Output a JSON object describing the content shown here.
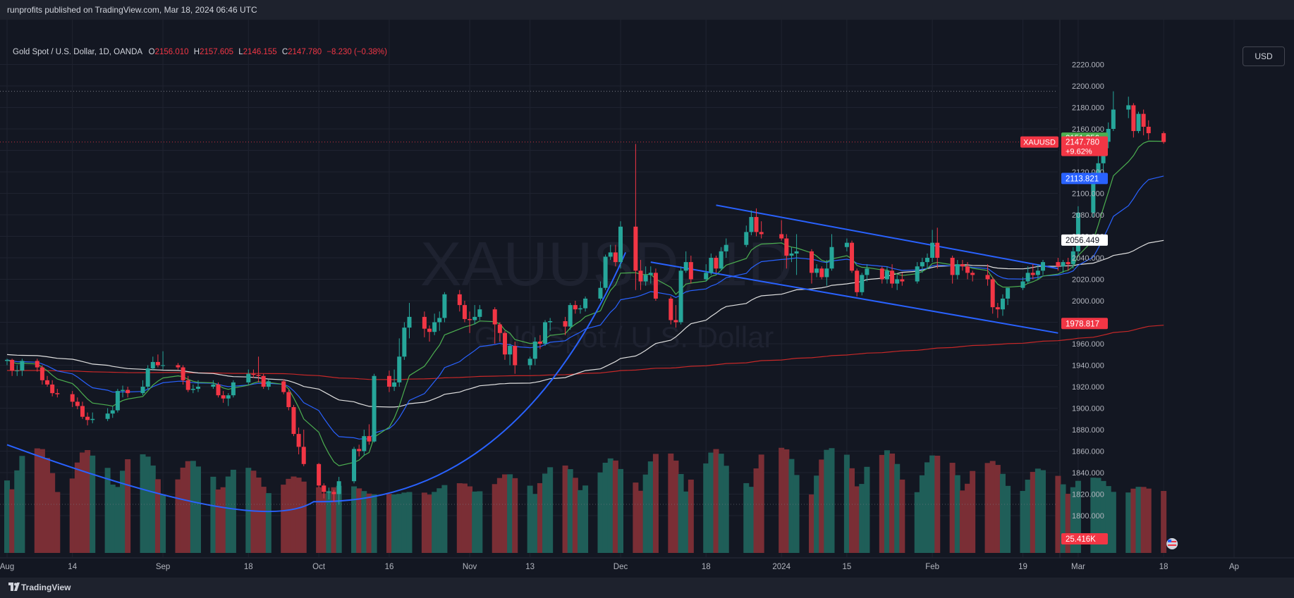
{
  "header": {
    "published": "runprofits published on TradingView.com, Mar 18, 2024 06:46 UTC"
  },
  "legend": {
    "title": "Gold Spot / U.S. Dollar, 1D, OANDA",
    "o_label": "O",
    "o_value": "2156.010",
    "h_label": "H",
    "h_value": "2157.605",
    "l_label": "L",
    "l_value": "2146.155",
    "c_label": "C",
    "c_value": "2147.780",
    "change": "−8.230 (−0.38%)"
  },
  "currency_button": "USD",
  "watermark": {
    "symbol": "XAUUSD, 1D",
    "name": "Gold Spot / U.S. Dollar"
  },
  "footer": {
    "brand": "TradingView"
  },
  "colors": {
    "up": "#26a69a",
    "down": "#f23645",
    "background": "#131722",
    "grid": "#1f2330",
    "text": "#d1d4dc"
  },
  "icons": {
    "logo": "tradingview-logo-icon",
    "flag": "us-flag-icon"
  },
  "chart_data": {
    "type": "candlestick",
    "symbol": "XAUUSD",
    "y_axis": {
      "ticks": [
        "2220.000",
        "2200.000",
        "2180.000",
        "2160.000",
        "2140.000",
        "2120.000",
        "2100.000",
        "2080.000",
        "2060.000",
        "2040.000",
        "2020.000",
        "2000.000",
        "1980.000",
        "1960.000",
        "1940.000",
        "1920.000",
        "1900.000",
        "1880.000",
        "1860.000",
        "1840.000",
        "1820.000",
        "1800.000"
      ],
      "range": [
        1787,
        2230
      ]
    },
    "x_axis": {
      "ticks": [
        {
          "label": "Aug",
          "date": "2023-08-01"
        },
        {
          "label": "14",
          "date": "2023-08-14"
        },
        {
          "label": "Sep",
          "date": "2023-09-01"
        },
        {
          "label": "18",
          "date": "2023-09-18"
        },
        {
          "label": "Oct",
          "date": "2023-10-02"
        },
        {
          "label": "16",
          "date": "2023-10-16"
        },
        {
          "label": "Nov",
          "date": "2023-11-01"
        },
        {
          "label": "13",
          "date": "2023-11-13"
        },
        {
          "label": "Dec",
          "date": "2023-12-01"
        },
        {
          "label": "18",
          "date": "2023-12-18"
        },
        {
          "label": "2024",
          "date": "2024-01-02"
        },
        {
          "label": "15",
          "date": "2024-01-15"
        },
        {
          "label": "Feb",
          "date": "2024-02-01"
        },
        {
          "label": "19",
          "date": "2024-02-19"
        },
        {
          "label": "Mar",
          "date": "2024-03-01"
        },
        {
          "label": "18",
          "date": "2024-03-18"
        },
        {
          "label": "Ap",
          "date": "2024-04-01"
        }
      ]
    },
    "price_labels": [
      {
        "text": "2151.356",
        "value": 2151.356,
        "color": "#4caf50"
      },
      {
        "text": "2147.780",
        "sub": "+9.62%",
        "value": 2147.78,
        "color": "#f23645",
        "tag": "XAUUSD"
      },
      {
        "text": "2113.821",
        "value": 2113.821,
        "color": "#2962ff"
      },
      {
        "text": "2056.449",
        "value": 2056.449,
        "color": "#ffffff"
      },
      {
        "text": "1978.817",
        "value": 1978.817,
        "color": "#f23645"
      },
      {
        "text": "25.416K",
        "value": null,
        "color": "#f23645"
      }
    ],
    "high_line": 2195,
    "candles": [
      [
        "2023-08-01",
        1944,
        1946,
        1940,
        1945
      ],
      [
        "2023-08-02",
        1945,
        1946,
        1930,
        1935
      ],
      [
        "2023-08-03",
        1935,
        1940,
        1930,
        1935
      ],
      [
        "2023-08-04",
        1935,
        1946,
        1930,
        1944
      ],
      [
        "2023-08-07",
        1944,
        1946,
        1934,
        1938
      ],
      [
        "2023-08-08",
        1938,
        1940,
        1922,
        1926
      ],
      [
        "2023-08-09",
        1926,
        1930,
        1920,
        1922
      ],
      [
        "2023-08-10",
        1922,
        1926,
        1911,
        1914
      ],
      [
        "2023-08-11",
        1914,
        1918,
        1910,
        1913
      ],
      [
        "2023-08-14",
        1913,
        1916,
        1901,
        1906
      ],
      [
        "2023-08-15",
        1906,
        1910,
        1899,
        1902
      ],
      [
        "2023-08-16",
        1902,
        1906,
        1890,
        1892
      ],
      [
        "2023-08-17",
        1892,
        1896,
        1884,
        1889
      ],
      [
        "2023-08-18",
        1889,
        1896,
        1886,
        1890
      ],
      [
        "2023-08-21",
        1890,
        1900,
        1888,
        1895
      ],
      [
        "2023-08-22",
        1895,
        1902,
        1891,
        1898
      ],
      [
        "2023-08-23",
        1898,
        1918,
        1896,
        1916
      ],
      [
        "2023-08-24",
        1916,
        1921,
        1910,
        1917
      ],
      [
        "2023-08-25",
        1917,
        1920,
        1910,
        1914
      ],
      [
        "2023-08-28",
        1914,
        1926,
        1912,
        1920
      ],
      [
        "2023-08-29",
        1920,
        1940,
        1918,
        1937
      ],
      [
        "2023-08-30",
        1937,
        1948,
        1935,
        1943
      ],
      [
        "2023-08-31",
        1943,
        1950,
        1938,
        1940
      ],
      [
        "2023-09-01",
        1940,
        1953,
        1936,
        1940
      ],
      [
        "2023-09-04",
        1940,
        1942,
        1936,
        1938
      ],
      [
        "2023-09-05",
        1938,
        1940,
        1922,
        1926
      ],
      [
        "2023-09-06",
        1926,
        1930,
        1915,
        1917
      ],
      [
        "2023-09-07",
        1917,
        1922,
        1914,
        1918
      ],
      [
        "2023-09-08",
        1918,
        1926,
        1915,
        1920
      ],
      [
        "2023-09-11",
        1920,
        1926,
        1918,
        1922
      ],
      [
        "2023-09-12",
        1922,
        1924,
        1910,
        1912
      ],
      [
        "2023-09-13",
        1912,
        1916,
        1905,
        1909
      ],
      [
        "2023-09-14",
        1909,
        1914,
        1902,
        1912
      ],
      [
        "2023-09-15",
        1912,
        1926,
        1910,
        1924
      ],
      [
        "2023-09-18",
        1924,
        1936,
        1922,
        1932
      ],
      [
        "2023-09-19",
        1932,
        1936,
        1928,
        1931
      ],
      [
        "2023-09-20",
        1931,
        1948,
        1924,
        1930
      ],
      [
        "2023-09-21",
        1930,
        1932,
        1918,
        1920
      ],
      [
        "2023-09-22",
        1920,
        1927,
        1917,
        1925
      ],
      [
        "2023-09-25",
        1925,
        1927,
        1913,
        1915
      ],
      [
        "2023-09-26",
        1915,
        1917,
        1898,
        1901
      ],
      [
        "2023-09-27",
        1901,
        1903,
        1874,
        1876
      ],
      [
        "2023-09-28",
        1876,
        1882,
        1857,
        1864
      ],
      [
        "2023-09-29",
        1864,
        1880,
        1846,
        1848
      ],
      [
        "2023-10-02",
        1848,
        1849,
        1826,
        1828
      ],
      [
        "2023-10-03",
        1828,
        1830,
        1816,
        1822
      ],
      [
        "2023-10-04",
        1822,
        1826,
        1815,
        1822
      ],
      [
        "2023-10-05",
        1822,
        1824,
        1813,
        1820
      ],
      [
        "2023-10-06",
        1820,
        1836,
        1810,
        1832
      ],
      [
        "2023-10-09",
        1832,
        1864,
        1830,
        1862
      ],
      [
        "2023-10-10",
        1862,
        1866,
        1855,
        1860
      ],
      [
        "2023-10-11",
        1860,
        1880,
        1856,
        1874
      ],
      [
        "2023-10-12",
        1874,
        1885,
        1866,
        1869
      ],
      [
        "2023-10-13",
        1869,
        1932,
        1868,
        1930
      ],
      [
        "2023-10-16",
        1930,
        1935,
        1915,
        1920
      ],
      [
        "2023-10-17",
        1920,
        1936,
        1916,
        1924
      ],
      [
        "2023-10-18",
        1924,
        1965,
        1920,
        1948
      ],
      [
        "2023-10-19",
        1948,
        1980,
        1945,
        1975
      ],
      [
        "2023-10-20",
        1975,
        1998,
        1965,
        1985
      ],
      [
        "2023-10-23",
        1985,
        1990,
        1966,
        1974
      ],
      [
        "2023-10-24",
        1974,
        1977,
        1962,
        1971
      ],
      [
        "2023-10-25",
        1971,
        1988,
        1968,
        1980
      ],
      [
        "2023-10-26",
        1980,
        1990,
        1972,
        1984
      ],
      [
        "2023-10-27",
        1984,
        2008,
        1980,
        2006
      ],
      [
        "2023-10-30",
        2006,
        2010,
        1990,
        1996
      ],
      [
        "2023-10-31",
        1996,
        2000,
        1980,
        1983
      ],
      [
        "2023-11-01",
        1983,
        1990,
        1970,
        1982
      ],
      [
        "2023-11-02",
        1982,
        1996,
        1978,
        1985
      ],
      [
        "2023-11-03",
        1985,
        1996,
        1982,
        1992
      ],
      [
        "2023-11-06",
        1992,
        1994,
        1960,
        1978
      ],
      [
        "2023-11-07",
        1978,
        1980,
        1962,
        1970
      ],
      [
        "2023-11-08",
        1970,
        1972,
        1945,
        1950
      ],
      [
        "2023-11-09",
        1950,
        1960,
        1940,
        1958
      ],
      [
        "2023-11-10",
        1958,
        1962,
        1932,
        1940
      ],
      [
        "2023-11-13",
        1940,
        1948,
        1936,
        1946
      ],
      [
        "2023-11-14",
        1946,
        1966,
        1940,
        1962
      ],
      [
        "2023-11-15",
        1962,
        1968,
        1955,
        1960
      ],
      [
        "2023-11-16",
        1960,
        1982,
        1958,
        1980
      ],
      [
        "2023-11-17",
        1980,
        1984,
        1972,
        1981
      ],
      [
        "2023-11-20",
        1981,
        1985,
        1968,
        1976
      ],
      [
        "2023-11-21",
        1976,
        1998,
        1973,
        1996
      ],
      [
        "2023-11-22",
        1996,
        2000,
        1988,
        1992
      ],
      [
        "2023-11-23",
        1992,
        1996,
        1988,
        1993
      ],
      [
        "2023-11-24",
        1993,
        2004,
        1990,
        2002
      ],
      [
        "2023-11-27",
        2002,
        2018,
        2000,
        2012
      ],
      [
        "2023-11-28",
        2012,
        2043,
        2010,
        2041
      ],
      [
        "2023-11-29",
        2041,
        2052,
        2038,
        2045
      ],
      [
        "2023-11-30",
        2045,
        2052,
        2032,
        2036
      ],
      [
        "2023-12-01",
        2036,
        2074,
        2030,
        2069
      ],
      [
        "2023-12-04",
        2069,
        2146,
        2010,
        2028
      ],
      [
        "2023-12-05",
        2028,
        2038,
        2010,
        2018
      ],
      [
        "2023-12-06",
        2018,
        2032,
        2014,
        2024
      ],
      [
        "2023-12-07",
        2024,
        2032,
        2016,
        2026
      ],
      [
        "2023-12-08",
        2026,
        2030,
        2000,
        2002
      ],
      [
        "2023-12-11",
        2002,
        2004,
        1978,
        1982
      ],
      [
        "2023-12-12",
        1982,
        1996,
        1975,
        1980
      ],
      [
        "2023-12-13",
        1980,
        2032,
        1978,
        2028
      ],
      [
        "2023-12-14",
        2028,
        2046,
        2026,
        2036
      ],
      [
        "2023-12-15",
        2036,
        2042,
        2016,
        2020
      ],
      [
        "2023-12-18",
        2020,
        2034,
        2018,
        2026
      ],
      [
        "2023-12-19",
        2026,
        2044,
        2024,
        2040
      ],
      [
        "2023-12-20",
        2040,
        2042,
        2026,
        2030
      ],
      [
        "2023-12-21",
        2030,
        2050,
        2028,
        2046
      ],
      [
        "2023-12-22",
        2046,
        2058,
        2040,
        2052
      ],
      [
        "2023-12-26",
        2052,
        2070,
        2050,
        2064
      ],
      [
        "2023-12-27",
        2064,
        2084,
        2061,
        2078
      ],
      [
        "2023-12-28",
        2078,
        2086,
        2060,
        2064
      ],
      [
        "2023-12-29",
        2064,
        2074,
        2058,
        2062
      ],
      [
        "2024-01-02",
        2062,
        2075,
        2056,
        2058
      ],
      [
        "2024-01-03",
        2058,
        2062,
        2030,
        2042
      ],
      [
        "2024-01-04",
        2042,
        2050,
        2036,
        2044
      ],
      [
        "2024-01-05",
        2044,
        2062,
        2024,
        2046
      ],
      [
        "2024-01-08",
        2046,
        2048,
        2016,
        2026
      ],
      [
        "2024-01-09",
        2026,
        2034,
        2022,
        2030
      ],
      [
        "2024-01-10",
        2030,
        2032,
        2020,
        2022
      ],
      [
        "2024-01-11",
        2022,
        2038,
        2014,
        2030
      ],
      [
        "2024-01-12",
        2030,
        2062,
        2028,
        2050
      ],
      [
        "2024-01-15",
        2050,
        2058,
        2046,
        2054
      ],
      [
        "2024-01-16",
        2054,
        2056,
        2026,
        2028
      ],
      [
        "2024-01-17",
        2028,
        2030,
        2004,
        2008
      ],
      [
        "2024-01-18",
        2008,
        2026,
        2005,
        2024
      ],
      [
        "2024-01-19",
        2024,
        2034,
        2018,
        2030
      ],
      [
        "2024-01-22",
        2030,
        2032,
        2016,
        2020
      ],
      [
        "2024-01-23",
        2020,
        2032,
        2016,
        2028
      ],
      [
        "2024-01-24",
        2028,
        2034,
        2012,
        2016
      ],
      [
        "2024-01-25",
        2016,
        2024,
        2010,
        2020
      ],
      [
        "2024-01-26",
        2020,
        2026,
        2014,
        2018
      ],
      [
        "2024-01-29",
        2018,
        2036,
        2016,
        2032
      ],
      [
        "2024-01-30",
        2032,
        2040,
        2026,
        2036
      ],
      [
        "2024-01-31",
        2036,
        2044,
        2030,
        2040
      ],
      [
        "2024-02-01",
        2040,
        2066,
        2036,
        2054
      ],
      [
        "2024-02-02",
        2054,
        2068,
        2030,
        2040
      ],
      [
        "2024-02-05",
        2040,
        2042,
        2016,
        2024
      ],
      [
        "2024-02-06",
        2024,
        2038,
        2020,
        2034
      ],
      [
        "2024-02-07",
        2034,
        2038,
        2028,
        2032
      ],
      [
        "2024-02-08",
        2032,
        2036,
        2020,
        2026
      ],
      [
        "2024-02-09",
        2026,
        2028,
        2018,
        2024
      ],
      [
        "2024-02-12",
        2024,
        2034,
        2014,
        2020
      ],
      [
        "2024-02-13",
        2020,
        2022,
        1988,
        1994
      ],
      [
        "2024-02-14",
        1994,
        1998,
        1984,
        1992
      ],
      [
        "2024-02-15",
        1992,
        2006,
        1986,
        2002
      ],
      [
        "2024-02-16",
        2002,
        2012,
        1996,
        2012
      ],
      [
        "2024-02-19",
        2012,
        2022,
        2010,
        2018
      ],
      [
        "2024-02-20",
        2018,
        2032,
        2016,
        2026
      ],
      [
        "2024-02-21",
        2026,
        2034,
        2020,
        2024
      ],
      [
        "2024-02-22",
        2024,
        2034,
        2020,
        2028
      ],
      [
        "2024-02-23",
        2028,
        2038,
        2024,
        2036
      ],
      [
        "2024-02-26",
        2036,
        2040,
        2028,
        2032
      ],
      [
        "2024-02-27",
        2032,
        2038,
        2026,
        2036
      ],
      [
        "2024-02-28",
        2036,
        2040,
        2028,
        2034
      ],
      [
        "2024-02-29",
        2034,
        2050,
        2030,
        2046
      ],
      [
        "2024-03-01",
        2046,
        2088,
        2042,
        2082
      ],
      [
        "2024-03-04",
        2082,
        2120,
        2078,
        2114
      ],
      [
        "2024-03-05",
        2114,
        2140,
        2110,
        2128
      ],
      [
        "2024-03-06",
        2128,
        2152,
        2120,
        2148
      ],
      [
        "2024-03-07",
        2148,
        2166,
        2142,
        2160
      ],
      [
        "2024-03-08",
        2160,
        2195,
        2158,
        2178
      ],
      [
        "2024-03-11",
        2178,
        2190,
        2170,
        2182
      ],
      [
        "2024-03-12",
        2182,
        2184,
        2152,
        2158
      ],
      [
        "2024-03-13",
        2158,
        2176,
        2156,
        2174
      ],
      [
        "2024-03-14",
        2174,
        2178,
        2154,
        2162
      ],
      [
        "2024-03-15",
        2162,
        2168,
        2150,
        2156
      ],
      [
        "2024-03-18",
        2156,
        2157.605,
        2146.155,
        2147.78
      ]
    ],
    "volume_max": 120
  }
}
